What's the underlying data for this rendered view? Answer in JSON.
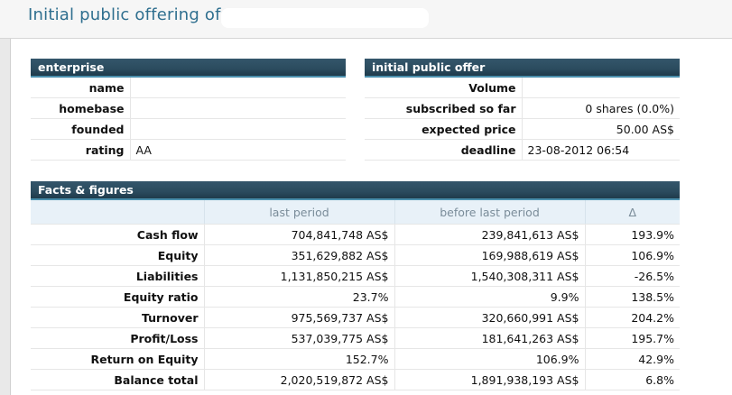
{
  "page": {
    "title": "Initial public offering of"
  },
  "enterprise": {
    "header": "enterprise",
    "rows": [
      {
        "label": "name",
        "value": ""
      },
      {
        "label": "homebase",
        "value": ""
      },
      {
        "label": "founded",
        "value": ""
      },
      {
        "label": "rating",
        "value": "AA"
      }
    ]
  },
  "ipo": {
    "header": "initial public offer",
    "rows": [
      {
        "label": "Volume",
        "value": ""
      },
      {
        "label": "subscribed so far",
        "value": "0 shares (0.0%)"
      },
      {
        "label": "expected price",
        "value": "50.00 AS$"
      },
      {
        "label": "deadline",
        "value": "23-08-2012 06:54"
      }
    ]
  },
  "facts": {
    "header": "Facts & figures",
    "columns": [
      "",
      "last period",
      "before last period",
      "Δ"
    ],
    "rows": [
      {
        "label": "Cash flow",
        "last": "704,841,748 AS$",
        "before": "239,841,613 AS$",
        "delta": "193.9%"
      },
      {
        "label": "Equity",
        "last": "351,629,882 AS$",
        "before": "169,988,619 AS$",
        "delta": "106.9%"
      },
      {
        "label": "Liabilities",
        "last": "1,131,850,215 AS$",
        "before": "1,540,308,311 AS$",
        "delta": "-26.5%"
      },
      {
        "label": "Equity ratio",
        "last": "23.7%",
        "before": "9.9%",
        "delta": "138.5%"
      },
      {
        "label": "Turnover",
        "last": "975,569,737 AS$",
        "before": "320,660,991 AS$",
        "delta": "204.2%"
      },
      {
        "label": "Profit/Loss",
        "last": "537,039,775 AS$",
        "before": "181,641,263 AS$",
        "delta": "195.7%"
      },
      {
        "label": "Return on Equity",
        "last": "152.7%",
        "before": "106.9%",
        "delta": "42.9%"
      },
      {
        "label": "Balance total",
        "last": "2,020,519,872 AS$",
        "before": "1,891,938,193 AS$",
        "delta": "6.8%"
      }
    ]
  }
}
